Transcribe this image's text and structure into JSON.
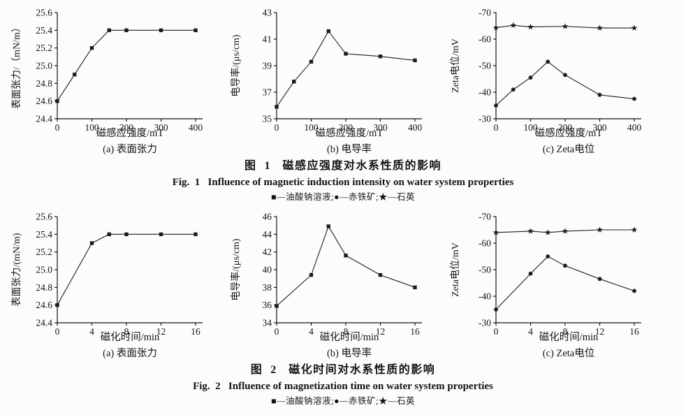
{
  "fig1": {
    "title_cn": "图  1   磁感应强度对水系性质的影响",
    "title_en": "Fig.  1   Influence of magnetic induction intensity on water system properties"
  },
  "fig2": {
    "title_cn": "图  2   磁化时间对水系性质的影响",
    "title_en": "Fig.  2   Influence of magnetization time on water system properties"
  },
  "legend": {
    "dash": "—",
    "separator": ";",
    "items": [
      {
        "marker": "■",
        "marker_name": "square-marker-icon",
        "label": "油酸钠溶液"
      },
      {
        "marker": "●",
        "marker_name": "circle-marker-icon",
        "label": "赤铁矿"
      },
      {
        "marker": "★",
        "marker_name": "star-marker-icon",
        "label": "石英"
      }
    ]
  },
  "colors": {
    "ink": "#141414",
    "line": "#1d1d1d",
    "background": "#fcfcfa"
  },
  "chart_data": [
    {
      "id": "fig1-a",
      "type": "line",
      "title": "(a) 表面张力",
      "xlabel": "磁感应强度/mT",
      "ylabel": "表面张力/（mN/m）",
      "xlim": [
        0,
        400
      ],
      "ylim": [
        24.4,
        25.6
      ],
      "xticks": [
        "0",
        "100",
        "200",
        "300",
        "400"
      ],
      "yticks": [
        "24.4",
        "24.6",
        "24.8",
        "25.0",
        "25.2",
        "25.4",
        "25.6"
      ],
      "grid": false,
      "series": [
        {
          "key": "sodium-oleate-solution",
          "name": "油酸钠溶液",
          "marker": "square",
          "x": [
            0,
            50,
            100,
            150,
            200,
            300,
            400
          ],
          "y": [
            24.6,
            24.9,
            25.2,
            25.4,
            25.4,
            25.4,
            25.4
          ]
        }
      ]
    },
    {
      "id": "fig1-b",
      "type": "line",
      "title": "(b) 电导率",
      "xlabel": "磁感应强度/mT",
      "ylabel": "电导率/(μs/cm)",
      "xlim": [
        0,
        400
      ],
      "ylim": [
        35,
        43
      ],
      "xticks": [
        "0",
        "100",
        "200",
        "300",
        "400"
      ],
      "yticks": [
        "35",
        "37",
        "39",
        "41",
        "43"
      ],
      "grid": false,
      "series": [
        {
          "key": "sodium-oleate-solution",
          "name": "油酸钠溶液",
          "marker": "square",
          "x": [
            0,
            50,
            100,
            150,
            200,
            300,
            400
          ],
          "y": [
            35.9,
            37.8,
            39.3,
            41.6,
            39.9,
            39.7,
            39.4
          ]
        }
      ]
    },
    {
      "id": "fig1-c",
      "type": "line",
      "title": "(c) Zeta电位",
      "xlabel": "磁感应强度/mT",
      "ylabel": "Zeta电位/mV",
      "xlim": [
        0,
        400
      ],
      "ylim": [
        -30,
        -70
      ],
      "xticks": [
        "0",
        "100",
        "200",
        "300",
        "400"
      ],
      "yticks": [
        "-30",
        "-40",
        "-50",
        "-60",
        "-70"
      ],
      "grid": false,
      "series": [
        {
          "key": "hematite",
          "name": "赤铁矿",
          "marker": "circle",
          "x": [
            0,
            50,
            100,
            150,
            200,
            300,
            400
          ],
          "y": [
            -35,
            -41,
            -45.5,
            -51.5,
            -46.5,
            -39,
            -37.5
          ]
        },
        {
          "key": "quartz",
          "name": "石英",
          "marker": "star",
          "x": [
            0,
            50,
            100,
            200,
            300,
            400
          ],
          "y": [
            -64.3,
            -65.2,
            -64.6,
            -64.8,
            -64.2,
            -64.2
          ]
        }
      ]
    },
    {
      "id": "fig2-a",
      "type": "line",
      "title": "(a) 表面张力",
      "xlabel": "磁化时间/min",
      "ylabel": "表面张力/(mN/m)",
      "xlim": [
        0,
        16
      ],
      "ylim": [
        24.4,
        25.6
      ],
      "xticks": [
        "0",
        "4",
        "8",
        "12",
        "16"
      ],
      "yticks": [
        "24.4",
        "24.6",
        "24.8",
        "25.0",
        "25.2",
        "25.4",
        "25.6"
      ],
      "grid": false,
      "series": [
        {
          "key": "sodium-oleate-solution",
          "name": "油酸钠溶液",
          "marker": "square",
          "x": [
            0,
            4,
            6,
            8,
            12,
            16
          ],
          "y": [
            24.6,
            25.3,
            25.4,
            25.4,
            25.4,
            25.4
          ]
        }
      ]
    },
    {
      "id": "fig2-b",
      "type": "line",
      "title": "(b) 电导率",
      "xlabel": "磁化时间/min",
      "ylabel": "电导率/(μs/cm)",
      "xlim": [
        0,
        16
      ],
      "ylim": [
        34,
        46
      ],
      "xticks": [
        "0",
        "4",
        "8",
        "12",
        "16"
      ],
      "yticks": [
        "34",
        "36",
        "38",
        "40",
        "42",
        "44",
        "46"
      ],
      "grid": false,
      "series": [
        {
          "key": "sodium-oleate-solution",
          "name": "油酸钠溶液",
          "marker": "square",
          "x": [
            0,
            4,
            6,
            8,
            12,
            16
          ],
          "y": [
            35.9,
            39.4,
            44.9,
            41.6,
            39.4,
            38.0
          ]
        }
      ]
    },
    {
      "id": "fig2-c",
      "type": "line",
      "title": "(c) Zeta电位",
      "xlabel": "磁化时间/min",
      "ylabel": "Zeta电位/mV",
      "xlim": [
        0,
        16
      ],
      "ylim": [
        -30,
        -70
      ],
      "xticks": [
        "0",
        "4",
        "8",
        "12",
        "16"
      ],
      "yticks": [
        "-30",
        "-40",
        "-50",
        "-60",
        "-70"
      ],
      "grid": false,
      "series": [
        {
          "key": "hematite",
          "name": "赤铁矿",
          "marker": "circle",
          "x": [
            0,
            4,
            6,
            8,
            12,
            16
          ],
          "y": [
            -35,
            -48.5,
            -55,
            -51.5,
            -46.5,
            -42
          ]
        },
        {
          "key": "quartz",
          "name": "石英",
          "marker": "star",
          "x": [
            0,
            4,
            6,
            8,
            12,
            16
          ],
          "y": [
            -64,
            -64.5,
            -64,
            -64.5,
            -65,
            -65
          ]
        }
      ]
    }
  ]
}
